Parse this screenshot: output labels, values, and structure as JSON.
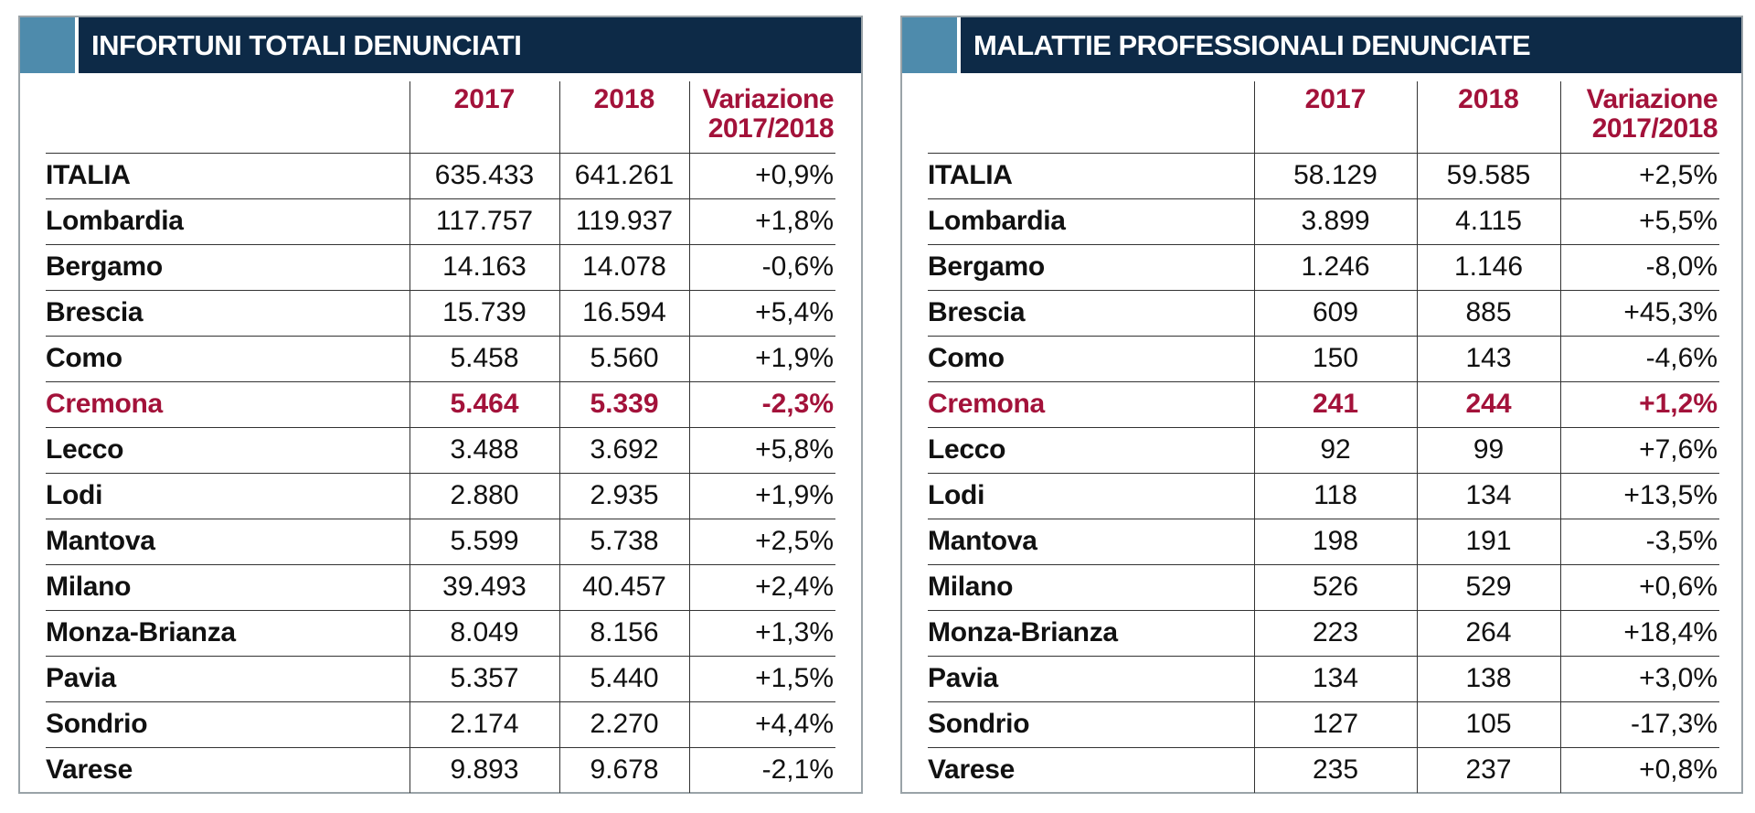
{
  "left_table": {
    "title": "INFORTUNI TOTALI DENUNCIATI",
    "headers": {
      "name": "",
      "y2017": "2017",
      "y2018": "2018",
      "variation_line1": "Variazione",
      "variation_line2": "2017/2018"
    },
    "rows": [
      {
        "name": "ITALIA",
        "y2017": "635.433",
        "y2018": "641.261",
        "variation": "+0,9%"
      },
      {
        "name": "Lombardia",
        "y2017": "117.757",
        "y2018": "119.937",
        "variation": "+1,8%"
      },
      {
        "name": "Bergamo",
        "y2017": "14.163",
        "y2018": "14.078",
        "variation": "-0,6%"
      },
      {
        "name": "Brescia",
        "y2017": "15.739",
        "y2018": "16.594",
        "variation": "+5,4%"
      },
      {
        "name": "Como",
        "y2017": "5.458",
        "y2018": "5.560",
        "variation": "+1,9%"
      },
      {
        "name": "Cremona",
        "y2017": "5.464",
        "y2018": "5.339",
        "variation": "-2,3%"
      },
      {
        "name": "Lecco",
        "y2017": "3.488",
        "y2018": "3.692",
        "variation": "+5,8%"
      },
      {
        "name": "Lodi",
        "y2017": "2.880",
        "y2018": "2.935",
        "variation": "+1,9%"
      },
      {
        "name": "Mantova",
        "y2017": "5.599",
        "y2018": "5.738",
        "variation": "+2,5%"
      },
      {
        "name": "Milano",
        "y2017": "39.493",
        "y2018": "40.457",
        "variation": "+2,4%"
      },
      {
        "name": "Monza-Brianza",
        "y2017": "8.049",
        "y2018": "8.156",
        "variation": "+1,3%"
      },
      {
        "name": "Pavia",
        "y2017": "5.357",
        "y2018": "5.440",
        "variation": "+1,5%"
      },
      {
        "name": "Sondrio",
        "y2017": "2.174",
        "y2018": "2.270",
        "variation": "+4,4%"
      },
      {
        "name": "Varese",
        "y2017": "9.893",
        "y2018": "9.678",
        "variation": "-2,1%"
      }
    ]
  },
  "right_table": {
    "title": "MALATTIE PROFESSIONALI DENUNCIATE",
    "headers": {
      "name": "",
      "y2017": "2017",
      "y2018": "2018",
      "variation_line1": "Variazione",
      "variation_line2": "2017/2018"
    },
    "rows": [
      {
        "name": "ITALIA",
        "y2017": "58.129",
        "y2018": "59.585",
        "variation": "+2,5%"
      },
      {
        "name": "Lombardia",
        "y2017": "3.899",
        "y2018": "4.115",
        "variation": "+5,5%"
      },
      {
        "name": "Bergamo",
        "y2017": "1.246",
        "y2018": "1.146",
        "variation": "-8,0%"
      },
      {
        "name": "Brescia",
        "y2017": "609",
        "y2018": "885",
        "variation": "+45,3%"
      },
      {
        "name": "Como",
        "y2017": "150",
        "y2018": "143",
        "variation": "-4,6%"
      },
      {
        "name": "Cremona",
        "y2017": "241",
        "y2018": "244",
        "variation": "+1,2%"
      },
      {
        "name": "Lecco",
        "y2017": "92",
        "y2018": "99",
        "variation": "+7,6%"
      },
      {
        "name": "Lodi",
        "y2017": "118",
        "y2018": "134",
        "variation": "+13,5%"
      },
      {
        "name": "Mantova",
        "y2017": "198",
        "y2018": "191",
        "variation": "-3,5%"
      },
      {
        "name": "Milano",
        "y2017": "526",
        "y2018": "529",
        "variation": "+0,6%"
      },
      {
        "name": "Monza-Brianza",
        "y2017": "223",
        "y2018": "264",
        "variation": "+18,4%"
      },
      {
        "name": "Pavia",
        "y2017": "134",
        "y2018": "138",
        "variation": "+3,0%"
      },
      {
        "name": "Sondrio",
        "y2017": "127",
        "y2018": "105",
        "variation": "-17,3%"
      },
      {
        "name": "Varese",
        "y2017": "235",
        "y2018": "237",
        "variation": "+0,8%"
      }
    ]
  },
  "highlighted_row": "Cremona",
  "colors": {
    "header_bg": "#0d2a47",
    "header_accent": "#4e8bac",
    "highlight_text": "#a3123a"
  }
}
